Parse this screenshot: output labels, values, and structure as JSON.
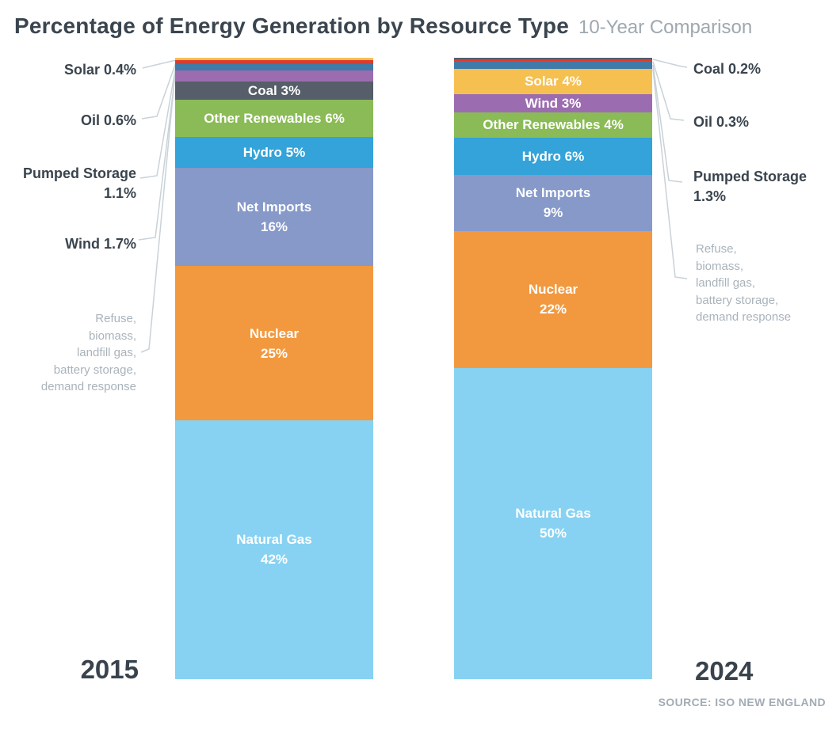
{
  "header": {
    "title": "Percentage of Energy Generation by Resource Type",
    "subtitle": "10-Year Comparison"
  },
  "footer": {
    "source": "SOURCE: ISO NEW ENGLAND"
  },
  "colors": {
    "natural_gas": "#87D2F2",
    "nuclear": "#F2993F",
    "net_imports": "#8699C9",
    "hydro": "#34A3D9",
    "other_renewables": "#8ABB56",
    "wind": "#9C6CB0",
    "coal": "#555E69",
    "pumped_storage": "#3E7BA8",
    "oil": "#DE3B2E",
    "solar": "#F6C050",
    "title_text": "#3A454F",
    "subtitle_text": "#9EA8B0",
    "note_text": "#A9B3BB",
    "leader_line": "#C9D2D8"
  },
  "chart_data": {
    "type": "bar",
    "subtype": "100%-stacked-column-comparison",
    "title": "Percentage of Energy Generation by Resource Type",
    "subtitle": "10-Year Comparison",
    "unit": "percent of energy generation",
    "categories": [
      "2015",
      "2024"
    ],
    "legend_position": "none",
    "grid": false,
    "series": [
      {
        "name": "Natural Gas",
        "values": [
          42,
          50
        ],
        "color": "#87D2F2"
      },
      {
        "name": "Nuclear",
        "values": [
          25,
          22
        ],
        "color": "#F2993F"
      },
      {
        "name": "Net Imports",
        "values": [
          16,
          9
        ],
        "color": "#8699C9"
      },
      {
        "name": "Hydro",
        "values": [
          5,
          6
        ],
        "color": "#34A3D9"
      },
      {
        "name": "Other Renewables",
        "values": [
          6,
          4
        ],
        "color": "#8ABB56"
      },
      {
        "name": "Coal",
        "values": [
          3,
          0.2
        ],
        "color": "#555E69"
      },
      {
        "name": "Wind",
        "values": [
          1.7,
          3
        ],
        "color": "#9C6CB0"
      },
      {
        "name": "Pumped Storage",
        "values": [
          1.1,
          1.3
        ],
        "color": "#3E7BA8"
      },
      {
        "name": "Oil",
        "values": [
          0.6,
          0.3
        ],
        "color": "#DE3B2E"
      },
      {
        "name": "Solar",
        "values": [
          0.4,
          4
        ],
        "color": "#F6C050"
      }
    ],
    "bars": [
      {
        "year": "2015",
        "segments": [
          {
            "name": "Solar",
            "pct": 0.4,
            "color": "#F6C050",
            "label": []
          },
          {
            "name": "Oil",
            "pct": 0.6,
            "color": "#DE3B2E",
            "label": []
          },
          {
            "name": "Pumped Storage",
            "pct": 1.1,
            "color": "#3E7BA8",
            "label": []
          },
          {
            "name": "Wind",
            "pct": 1.7,
            "color": "#9C6CB0",
            "label": []
          },
          {
            "name": "Coal",
            "pct": 3,
            "color": "#555E69",
            "label": [
              "Coal 3%"
            ]
          },
          {
            "name": "Other Renewables",
            "pct": 6,
            "color": "#8ABB56",
            "label": [
              "Other Renewables 6%"
            ]
          },
          {
            "name": "Hydro",
            "pct": 5,
            "color": "#34A3D9",
            "label": [
              "Hydro 5%"
            ]
          },
          {
            "name": "Net Imports",
            "pct": 16,
            "color": "#8699C9",
            "label": [
              "Net Imports",
              "16%"
            ]
          },
          {
            "name": "Nuclear",
            "pct": 25,
            "color": "#F2993F",
            "label": [
              "Nuclear",
              "25%"
            ]
          },
          {
            "name": "Natural Gas",
            "pct": 42,
            "color": "#87D2F2",
            "label": [
              "Natural Gas",
              "42%"
            ]
          }
        ]
      },
      {
        "year": "2024",
        "segments": [
          {
            "name": "Coal",
            "pct": 0.2,
            "color": "#555E69",
            "label": []
          },
          {
            "name": "Oil",
            "pct": 0.3,
            "color": "#DE3B2E",
            "label": []
          },
          {
            "name": "Pumped Storage",
            "pct": 1.3,
            "color": "#3E7BA8",
            "label": []
          },
          {
            "name": "Solar",
            "pct": 4,
            "color": "#F6C050",
            "label": [
              "Solar 4%"
            ]
          },
          {
            "name": "Wind",
            "pct": 3,
            "color": "#9C6CB0",
            "label": [
              "Wind 3%"
            ]
          },
          {
            "name": "Other Renewables",
            "pct": 4,
            "color": "#8ABB56",
            "label": [
              "Other Renewables 4%"
            ]
          },
          {
            "name": "Hydro",
            "pct": 6,
            "color": "#34A3D9",
            "label": [
              "Hydro 6%"
            ]
          },
          {
            "name": "Net Imports",
            "pct": 9,
            "color": "#8699C9",
            "label": [
              "Net Imports",
              "9%"
            ]
          },
          {
            "name": "Nuclear",
            "pct": 22,
            "color": "#F2993F",
            "label": [
              "Nuclear",
              "22%"
            ]
          },
          {
            "name": "Natural Gas",
            "pct": 50,
            "color": "#87D2F2",
            "label": [
              "Natural Gas",
              "50%"
            ]
          }
        ]
      }
    ]
  },
  "annotations": {
    "left": {
      "solar": "Solar 0.4%",
      "oil": "Oil 0.6%",
      "pumped_storage": "Pumped Storage\n1.1%",
      "wind": "Wind 1.7%",
      "note": "Refuse,\nbiomass,\nlandfill gas,\nbattery storage,\ndemand response"
    },
    "right": {
      "coal": "Coal 0.2%",
      "oil": "Oil 0.3%",
      "pumped_storage": "Pumped Storage\n1.3%",
      "note": "Refuse,\nbiomass,\nlandfill gas,\nbattery storage,\ndemand response"
    }
  }
}
